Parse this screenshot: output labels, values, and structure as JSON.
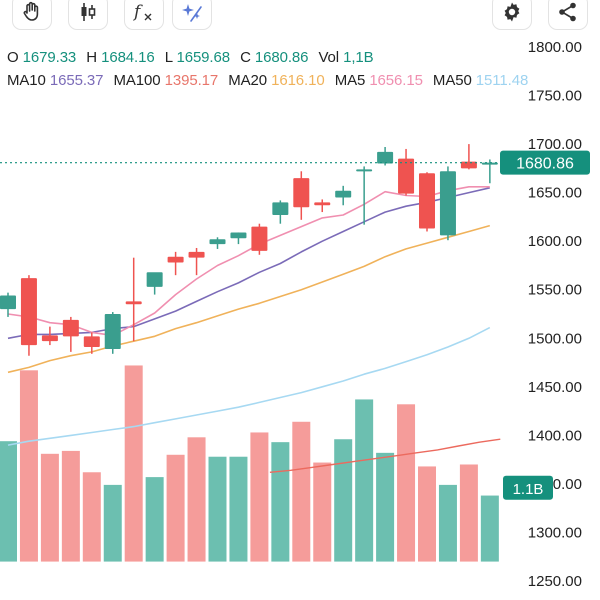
{
  "toolbar": {
    "left_icons": [
      "hand-icon",
      "candlestick-icon",
      "fx-icon",
      "sparkle-icon"
    ],
    "right_icons": [
      "gear-icon",
      "share-icon"
    ],
    "fx_label": "f"
  },
  "ohlc": {
    "o_label": "O",
    "o": "1679.33",
    "h_label": "H",
    "h": "1684.16",
    "l_label": "L",
    "l": "1659.68",
    "c_label": "C",
    "c": "1680.86",
    "vol_label": "Vol",
    "vol": "1,1B"
  },
  "ma": [
    {
      "label": "MA10",
      "value": "1655.37",
      "color": "#7b6bb8"
    },
    {
      "label": "MA100",
      "value": "1395.17",
      "color": "#e8766b"
    },
    {
      "label": "MA20",
      "value": "1616.10",
      "color": "#f0b25a"
    },
    {
      "label": "MA5",
      "value": "1656.15",
      "color": "#f08fb0"
    },
    {
      "label": "MA50",
      "value": "1511.48",
      "color": "#9ed3f0"
    }
  ],
  "colors": {
    "up": "#3a9e8e",
    "down": "#ef5350",
    "vol_up": "#6cbfb0",
    "vol_down": "#f59c9a",
    "ma5": "#f08fb0",
    "ma10": "#7b6bb8",
    "ma20": "#f0b25a",
    "ma50": "#a7d9f2",
    "vol_ma": "#ec6a5e",
    "last_price": "#15907d"
  },
  "chart_data": {
    "type": "candlestick",
    "price_axis": {
      "ticks": [
        "1800.00",
        "1750.00",
        "1700.00",
        "1650.00",
        "1600.00",
        "1550.00",
        "1500.00",
        "1450.00",
        "1400.00",
        "1350.00",
        "1300.00",
        "1250.00"
      ],
      "range": [
        1250,
        1800
      ]
    },
    "last_price": {
      "value": 1680.86,
      "label": "1680.86"
    },
    "last_volume_label": "1.1B",
    "candles": [
      {
        "o": 1530,
        "h": 1547,
        "l": 1522,
        "c": 1544
      },
      {
        "o": 1562,
        "h": 1565,
        "l": 1482,
        "c": 1493
      },
      {
        "o": 1503,
        "h": 1512,
        "l": 1493,
        "c": 1497
      },
      {
        "o": 1519,
        "h": 1522,
        "l": 1486,
        "c": 1502
      },
      {
        "o": 1502,
        "h": 1506,
        "l": 1484,
        "c": 1491
      },
      {
        "o": 1489,
        "h": 1527,
        "l": 1484,
        "c": 1525
      },
      {
        "o": 1538,
        "h": 1583,
        "l": 1497,
        "c": 1535
      },
      {
        "o": 1553,
        "h": 1567,
        "l": 1545,
        "c": 1568
      },
      {
        "o": 1584,
        "h": 1589,
        "l": 1565,
        "c": 1578
      },
      {
        "o": 1589,
        "h": 1593,
        "l": 1565,
        "c": 1583
      },
      {
        "o": 1597,
        "h": 1604,
        "l": 1592,
        "c": 1602
      },
      {
        "o": 1603,
        "h": 1609,
        "l": 1597,
        "c": 1609
      },
      {
        "o": 1615,
        "h": 1618,
        "l": 1586,
        "c": 1590
      },
      {
        "o": 1627,
        "h": 1642,
        "l": 1618,
        "c": 1640
      },
      {
        "o": 1665,
        "h": 1672,
        "l": 1622,
        "c": 1635
      },
      {
        "o": 1640,
        "h": 1643,
        "l": 1630,
        "c": 1637
      },
      {
        "o": 1645,
        "h": 1657,
        "l": 1637,
        "c": 1652
      },
      {
        "o": 1673,
        "h": 1677,
        "l": 1617,
        "c": 1674
      },
      {
        "o": 1680,
        "h": 1697,
        "l": 1678,
        "c": 1692
      },
      {
        "o": 1685,
        "h": 1695,
        "l": 1647,
        "c": 1649
      },
      {
        "o": 1670,
        "h": 1671,
        "l": 1610,
        "c": 1613
      },
      {
        "o": 1606,
        "h": 1677,
        "l": 1601,
        "c": 1672
      },
      {
        "o": 1682,
        "h": 1700,
        "l": 1674,
        "c": 1675
      },
      {
        "o": 1679.33,
        "h": 1684.16,
        "l": 1659.68,
        "c": 1680.86
      }
    ],
    "volume_bars": [
      {
        "bottom": 1270,
        "top": 1394
      },
      {
        "bottom": 1270,
        "top": 1467
      },
      {
        "bottom": 1270,
        "top": 1381
      },
      {
        "bottom": 1270,
        "top": 1384
      },
      {
        "bottom": 1270,
        "top": 1362
      },
      {
        "bottom": 1270,
        "top": 1349
      },
      {
        "bottom": 1270,
        "top": 1472
      },
      {
        "bottom": 1270,
        "top": 1357
      },
      {
        "bottom": 1270,
        "top": 1380
      },
      {
        "bottom": 1270,
        "top": 1398
      },
      {
        "bottom": 1270,
        "top": 1378
      },
      {
        "bottom": 1270,
        "top": 1378
      },
      {
        "bottom": 1270,
        "top": 1403
      },
      {
        "bottom": 1270,
        "top": 1393
      },
      {
        "bottom": 1270,
        "top": 1414
      },
      {
        "bottom": 1270,
        "top": 1372
      },
      {
        "bottom": 1270,
        "top": 1396
      },
      {
        "bottom": 1270,
        "top": 1437
      },
      {
        "bottom": 1270,
        "top": 1382
      },
      {
        "bottom": 1270,
        "top": 1432
      },
      {
        "bottom": 1270,
        "top": 1368
      },
      {
        "bottom": 1270,
        "top": 1349
      },
      {
        "bottom": 1270,
        "top": 1370
      },
      {
        "bottom": 1270,
        "top": 1338
      }
    ],
    "ma5": [
      1525,
      1522,
      1516,
      1514,
      1506,
      1503,
      1514,
      1526,
      1545,
      1561,
      1575,
      1585,
      1597,
      1606,
      1615,
      1624,
      1627,
      1638,
      1651,
      1647,
      1646,
      1652,
      1656,
      1656
    ],
    "ma10": [
      1500,
      1504,
      1504,
      1505,
      1506,
      1510,
      1512,
      1520,
      1528,
      1538,
      1548,
      1557,
      1568,
      1577,
      1589,
      1600,
      1610,
      1620,
      1630,
      1636,
      1640,
      1645,
      1650,
      1655
    ],
    "ma20": [
      1465,
      1470,
      1477,
      1482,
      1486,
      1492,
      1497,
      1502,
      1510,
      1516,
      1523,
      1530,
      1536,
      1543,
      1550,
      1558,
      1566,
      1574,
      1584,
      1592,
      1598,
      1604,
      1610,
      1616
    ],
    "ma50": [
      1390,
      1394,
      1397,
      1400,
      1403,
      1406,
      1409,
      1413,
      1417,
      1421,
      1425,
      1429,
      1434,
      1439,
      1444,
      1450,
      1456,
      1463,
      1469,
      1476,
      1483,
      1491,
      1500,
      1511
    ],
    "vol_ma": {
      "start_index": 12.5,
      "values": [
        1362,
        1364,
        1367,
        1370,
        1373,
        1376,
        1379,
        1382,
        1385,
        1389,
        1393,
        1396
      ]
    }
  }
}
